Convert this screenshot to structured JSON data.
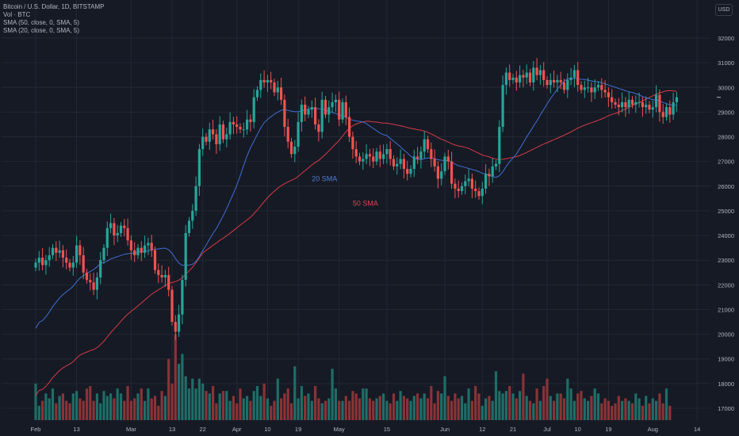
{
  "legend": {
    "title": "Bitcoin / U.S. Dollar, 1D, BITSTAMP",
    "volume": "Vol · BTC",
    "sma50": "SMA (50, close, 0, SMA, 5)",
    "sma20": "SMA (20, close, 0, SMA, 5)"
  },
  "currency_label": "USD",
  "chart_data": {
    "type": "candlestick",
    "y_axis": {
      "ticks": [
        17000,
        18000,
        19000,
        20000,
        21000,
        22000,
        23000,
        24000,
        25000,
        26000,
        27000,
        28000,
        29000,
        30000,
        31000,
        32000
      ],
      "range": [
        16600,
        32600
      ],
      "side": "right"
    },
    "x_axis": {
      "ticks": [
        {
          "label": "Feb",
          "day": 0
        },
        {
          "label": "13",
          "day": 12
        },
        {
          "label": "Mar",
          "day": 28
        },
        {
          "label": "13",
          "day": 40
        },
        {
          "label": "22",
          "day": 49
        },
        {
          "label": "Apr",
          "day": 59
        },
        {
          "label": "10",
          "day": 68
        },
        {
          "label": "19",
          "day": 77
        },
        {
          "label": "May",
          "day": 89
        },
        {
          "label": "15",
          "day": 103
        },
        {
          "label": "Jun",
          "day": 120
        },
        {
          "label": "12",
          "day": 131
        },
        {
          "label": "21",
          "day": 140
        },
        {
          "label": "Jul",
          "day": 150
        },
        {
          "label": "10",
          "day": 159
        },
        {
          "label": "19",
          "day": 168
        },
        {
          "label": "Aug",
          "day": 181
        },
        {
          "label": "14",
          "day": 194
        }
      ]
    },
    "series_close": [
      22900,
      23100,
      22800,
      23000,
      23200,
      23500,
      23300,
      23400,
      23100,
      22900,
      22700,
      22900,
      23600,
      23200,
      22500,
      22200,
      22100,
      21800,
      22300,
      23000,
      23500,
      24300,
      24500,
      24000,
      24100,
      24400,
      24300,
      23800,
      23400,
      23200,
      23500,
      23300,
      23600,
      23700,
      23400,
      22600,
      22400,
      22300,
      22400,
      21800,
      20500,
      20100,
      20800,
      22200,
      24100,
      24600,
      25000,
      26000,
      27500,
      28000,
      27800,
      28300,
      28100,
      27700,
      28500,
      27900,
      28100,
      28600,
      28500,
      28400,
      28300,
      28300,
      28700,
      28600,
      29600,
      29900,
      30300,
      30200,
      30300,
      30200,
      29800,
      30000,
      29500,
      28400,
      27800,
      27300,
      27600,
      28600,
      29300,
      28900,
      29100,
      29200,
      28500,
      28200,
      29500,
      28900,
      29200,
      29400,
      29500,
      28700,
      29400,
      28800,
      28000,
      27500,
      27200,
      27000,
      27100,
      27300,
      27200,
      27000,
      27400,
      27100,
      27300,
      27500,
      27100,
      26800,
      26900,
      27100,
      26700,
      26500,
      26700,
      27200,
      27100,
      27400,
      27900,
      27500,
      27100,
      26800,
      26300,
      26600,
      27200,
      27000,
      26100,
      25900,
      25800,
      26000,
      26200,
      26300,
      25900,
      25800,
      25600,
      25900,
      26500,
      26400,
      26800,
      26900,
      28400,
      30100,
      30600,
      30300,
      30400,
      30200,
      30500,
      30400,
      30600,
      30200,
      30800,
      30500,
      30700,
      30300,
      30100,
      30300,
      30200,
      30300,
      30200,
      29900,
      30300,
      30400,
      30700,
      30100,
      29900,
      30000,
      30000,
      29800,
      30000,
      30100,
      29900,
      29800,
      29600,
      29400,
      29300,
      29200,
      29400,
      29200,
      29500,
      29300,
      29400,
      29400,
      29200,
      29300,
      29100,
      29200,
      29700,
      29000,
      28800,
      29200,
      28900,
      29400,
      29600
    ],
    "volume": [
      18000,
      17100,
      17300,
      17600,
      17400,
      17800,
      17200,
      17500,
      17600,
      17300,
      17200,
      17600,
      17700,
      17400,
      17300,
      17800,
      17900,
      17300,
      17600,
      17200,
      17700,
      17500,
      17600,
      17400,
      17800,
      17600,
      17300,
      17900,
      17300,
      17400,
      17600,
      17800,
      17300,
      17800,
      17400,
      17500,
      17100,
      17700,
      17500,
      19000,
      18000,
      20000,
      18800,
      19200,
      18300,
      17800,
      18200,
      17800,
      18200,
      18000,
      17700,
      17600,
      17900,
      17200,
      17600,
      17700,
      17700,
      17300,
      17500,
      17200,
      17800,
      17400,
      17500,
      17300,
      17700,
      17900,
      17500,
      18000,
      17400,
      17100,
      17300,
      18200,
      17400,
      17600,
      17800,
      17200,
      18700,
      17400,
      17900,
      17500,
      17600,
      17300,
      17900,
      17400,
      17200,
      17300,
      17400,
      18600,
      17800,
      17300,
      17300,
      17500,
      17300,
      17700,
      17600,
      17400,
      17800,
      17800,
      17400,
      17300,
      17400,
      17500,
      17600,
      17300,
      17200,
      17600,
      17300,
      17700,
      17500,
      17400,
      17300,
      17500,
      17600,
      17400,
      17600,
      17400,
      17900,
      17200,
      17700,
      17600,
      18300,
      17500,
      17300,
      17600,
      17400,
      17500,
      17200,
      17800,
      17300,
      17900,
      17600,
      17100,
      17400,
      17500,
      17300,
      18500,
      17700,
      17600,
      17700,
      17900,
      17600,
      17400,
      17700,
      18400,
      17500,
      17300,
      17200,
      17800,
      17300,
      17900,
      18200,
      17500,
      17300,
      17600,
      17600,
      17400,
      18200,
      17800,
      17300,
      17600,
      17700,
      17400,
      17300,
      17500,
      17800,
      17600,
      17200,
      17400,
      17300,
      17100,
      17200,
      17500,
      17300,
      17400,
      17300,
      17200,
      17600,
      17400,
      17100,
      17500,
      17200,
      17400,
      17300,
      17600,
      17200,
      17800,
      17100
    ],
    "annotations": [
      {
        "text": "20 SMA",
        "day": 81,
        "value": 26200,
        "color": "#4f7fd4"
      },
      {
        "text": "50 SMA",
        "day": 93,
        "value": 25200,
        "color": "#d8464f"
      }
    ],
    "colors": {
      "up": "#26a69a",
      "down": "#ef5350",
      "up_volume": "#1e6e67",
      "down_volume": "#8a3336",
      "sma20": "#3f6fd0",
      "sma50": "#d63a45",
      "grid": "#232735",
      "background": "#161a25",
      "text": "#b2b5be"
    }
  }
}
